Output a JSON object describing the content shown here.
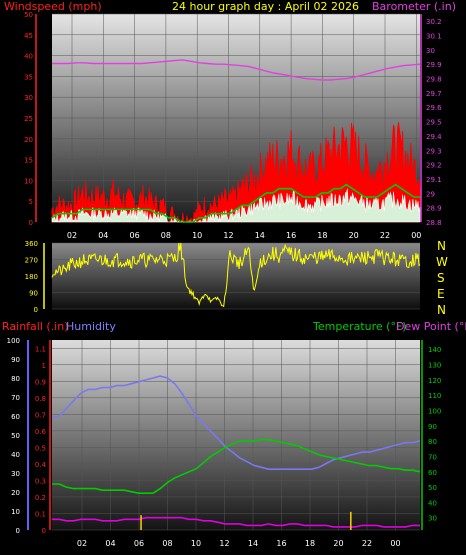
{
  "header": {
    "title": "24 hour graph day : April 02 2026",
    "left_label": "Windspeed (mph)",
    "right_label": "Barometer (.in)"
  },
  "lower_header": {
    "rainfall_label": "Rainfall (.in)",
    "humidity_label": "Humidity",
    "temperature_label": "Temperature (°F)",
    "dewpoint_label": "Dew Point (°F)"
  },
  "colors": {
    "wind": "#ff0000",
    "gust": "#00cc00",
    "avg": "#ffffff",
    "barometer": "#e040e0",
    "direction": "#ffff00",
    "humidity": "#7878f0",
    "temperature": "#00cc00",
    "dewpoint": "#e000e0",
    "rain": "#ffd000",
    "axis_left": "#ff2020",
    "axis_right_top": "#e040e0",
    "axis_left_humidity": "#6060ff",
    "axis_right_temp": "#00cc00"
  },
  "chart_data": [
    {
      "type": "line",
      "name_hint": "wind-barometer",
      "x_ticks": [
        "02",
        "04",
        "06",
        "08",
        "10",
        "12",
        "14",
        "16",
        "18",
        "20",
        "22",
        "00"
      ],
      "y_left_ticks": [
        0,
        5,
        10,
        15,
        20,
        25,
        30,
        35,
        40,
        45,
        50
      ],
      "y_left_range": [
        0,
        50
      ],
      "y_right_ticks": [
        "28.8",
        "28.9",
        "29",
        "29.1",
        "29.2",
        "29.3",
        "29.4",
        "29.5",
        "29.6",
        "29.7",
        "29.8",
        "29.9",
        "30",
        "30.1",
        "30.2"
      ],
      "y_right_range": [
        28.8,
        30.25
      ],
      "wind_speed": [
        3,
        4,
        4,
        4,
        5,
        7,
        6,
        6,
        6,
        6,
        7,
        6,
        5,
        5,
        5,
        6,
        5,
        4,
        4,
        2,
        2,
        1,
        1,
        1,
        3,
        4,
        4,
        4,
        5,
        5,
        6,
        8,
        9,
        10,
        12,
        14,
        15,
        15,
        16,
        17,
        15,
        13,
        12,
        13,
        14,
        16,
        17,
        18,
        19,
        18,
        16,
        14,
        12,
        12,
        14,
        16,
        18,
        17,
        15,
        13,
        12
      ],
      "wind_gust": [
        1,
        2,
        2,
        2,
        2,
        3,
        3,
        3,
        3,
        3,
        3,
        3,
        3,
        3,
        3,
        3,
        3,
        2,
        2,
        1,
        1,
        0,
        0,
        0,
        1,
        1,
        2,
        2,
        2,
        2,
        3,
        4,
        4,
        5,
        6,
        7,
        7,
        8,
        8,
        8,
        7,
        6,
        6,
        6,
        7,
        7,
        8,
        8,
        9,
        8,
        7,
        6,
        6,
        6,
        7,
        8,
        9,
        8,
        7,
        6,
        6
      ],
      "wind_avg": [
        0.5,
        1,
        1.5,
        1.5,
        1.5,
        2,
        2,
        2,
        2,
        2,
        2,
        2,
        2,
        2,
        2,
        2,
        1.5,
        1.5,
        1,
        0.5,
        0.5,
        0,
        0,
        0,
        0.5,
        1,
        1,
        1,
        1.5,
        1.5,
        2,
        2.5,
        3,
        3.5,
        4,
        4.5,
        5,
        5,
        5,
        5.5,
        5,
        4.5,
        4,
        4,
        4.5,
        5,
        5,
        5.5,
        6,
        5.5,
        5,
        4.5,
        4,
        4,
        4.5,
        5,
        5.5,
        5,
        4.5,
        4,
        4
      ],
      "barometer": [
        29.905,
        29.905,
        29.905,
        29.91,
        29.91,
        29.905,
        29.905,
        29.905,
        29.905,
        29.905,
        29.905,
        29.905,
        29.91,
        29.915,
        29.92,
        29.925,
        29.93,
        29.92,
        29.91,
        29.905,
        29.9,
        29.9,
        29.895,
        29.89,
        29.885,
        29.87,
        29.855,
        29.84,
        29.83,
        29.82,
        29.81,
        29.8,
        29.795,
        29.79,
        29.79,
        29.795,
        29.8,
        29.81,
        29.825,
        29.84,
        29.855,
        29.87,
        29.88,
        29.89,
        29.895,
        29.9
      ]
    },
    {
      "type": "line",
      "name_hint": "wind-direction",
      "y_ticks": [
        0,
        90,
        180,
        270,
        360
      ],
      "y_range": [
        0,
        360
      ],
      "compass_labels": [
        "N",
        "W",
        "S",
        "E",
        "N"
      ],
      "direction": [
        200,
        205,
        210,
        240,
        250,
        265,
        262,
        268,
        270,
        265,
        268,
        270,
        265,
        262,
        270,
        268,
        265,
        270,
        275,
        270,
        275,
        350,
        120,
        80,
        30,
        90,
        40,
        60,
        10,
        300,
        260,
        250,
        330,
        90,
        260,
        280,
        300,
        290,
        310,
        300,
        290,
        280,
        275,
        285,
        280,
        290,
        285,
        280,
        275,
        270,
        275,
        280,
        285,
        290,
        280,
        275,
        270,
        265,
        260,
        270,
        265
      ]
    },
    {
      "type": "line",
      "name_hint": "temperature-humidity",
      "x_ticks": [
        "02",
        "04",
        "06",
        "08",
        "10",
        "12",
        "14",
        "16",
        "18",
        "20",
        "22",
        "00"
      ],
      "y_left_humidity_ticks": [
        0,
        10,
        20,
        30,
        40,
        50,
        60,
        70,
        80,
        90,
        100
      ],
      "y_left_humidity_range": [
        0,
        100
      ],
      "y_left_rain_ticks": [
        "0",
        "0.1",
        "0.2",
        "0.3",
        "0.4",
        "0.5",
        "0.6",
        "0.7",
        "0.8",
        "0.9",
        "1",
        "1.1"
      ],
      "y_left_rain_range": [
        0,
        1.15
      ],
      "y_right_ticks": [
        30,
        40,
        50,
        60,
        70,
        80,
        90,
        100,
        110,
        120,
        130,
        140
      ],
      "y_right_range": [
        22,
        146
      ],
      "humidity": [
        59,
        60,
        64,
        68,
        72,
        74,
        74,
        75,
        75,
        76,
        76,
        77,
        78,
        79,
        80,
        81,
        80,
        77,
        72,
        66,
        60,
        56,
        52,
        48,
        44,
        41,
        38,
        36,
        34,
        33,
        32,
        32,
        32,
        32,
        32,
        32,
        32,
        33,
        35,
        37,
        38,
        39,
        40,
        41,
        41,
        42,
        43,
        44,
        45,
        46,
        46,
        47
      ],
      "temperature": [
        52,
        52,
        50,
        49,
        49,
        49,
        49,
        48,
        48,
        48,
        48,
        47,
        46,
        46,
        46,
        49,
        53,
        56,
        58,
        60,
        62,
        66,
        70,
        73,
        76,
        78,
        80,
        80,
        80,
        81,
        81,
        80,
        79,
        78,
        77,
        75,
        73,
        71,
        70,
        69,
        68,
        67,
        66,
        65,
        64,
        64,
        63,
        62,
        62,
        61,
        61,
        60
      ],
      "dewpoint": [
        29,
        29,
        28,
        28,
        29,
        29,
        29,
        28,
        28,
        28,
        29,
        29,
        29,
        30,
        30,
        30,
        30,
        30,
        30,
        29,
        29,
        28,
        28,
        27,
        26,
        26,
        26,
        25,
        25,
        25,
        26,
        25,
        25,
        26,
        26,
        25,
        25,
        25,
        25,
        24,
        24,
        24,
        24,
        25,
        25,
        25,
        24,
        24,
        24,
        24,
        25,
        25
      ],
      "rain_marks": [
        {
          "x_frac": 0.242,
          "value": 0.09
        },
        {
          "x_frac": 0.812,
          "value": 0.11
        }
      ]
    }
  ]
}
